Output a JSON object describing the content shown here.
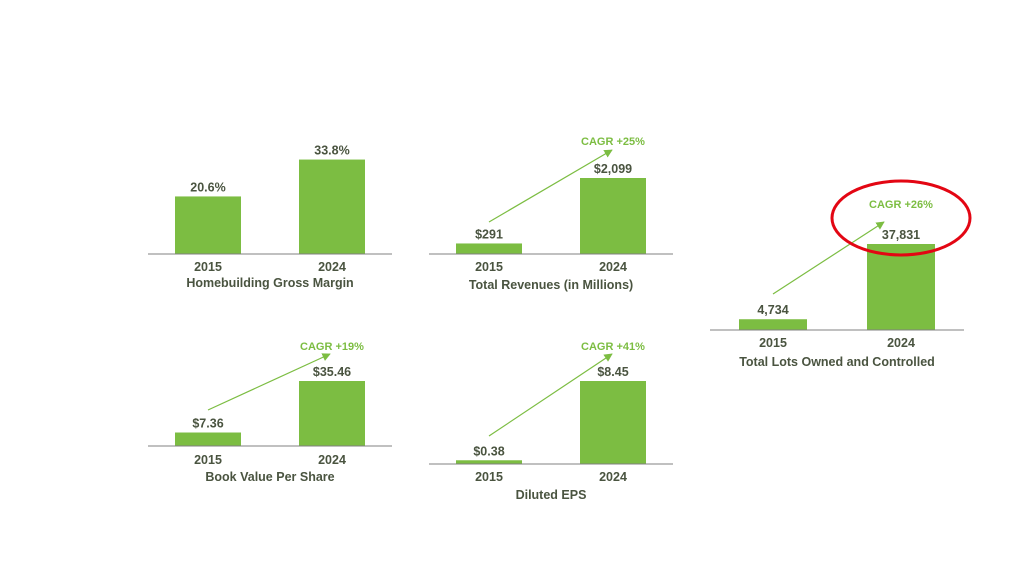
{
  "colors": {
    "bar": "#7cbd42",
    "text": "#4a5440",
    "axis": "#808080",
    "highlight": "#e30613"
  },
  "chart_data": [
    {
      "type": "bar",
      "title": "Homebuilding Gross Margin",
      "categories": [
        "2015",
        "2024"
      ],
      "values": [
        20.6,
        33.8
      ],
      "value_labels": [
        "20.6%",
        "33.8%"
      ],
      "ylim": [
        0,
        34
      ],
      "cagr": ""
    },
    {
      "type": "bar",
      "title": "Total Revenues (in Millions)",
      "categories": [
        "2015",
        "2024"
      ],
      "values": [
        291,
        2099
      ],
      "value_labels": [
        "$291",
        "$2,099"
      ],
      "ylim": [
        0,
        2099
      ],
      "cagr": "CAGR +25%"
    },
    {
      "type": "bar",
      "title": "Total Lots Owned and Controlled",
      "categories": [
        "2015",
        "2024"
      ],
      "values": [
        4734,
        37831
      ],
      "value_labels": [
        "4,734",
        "37,831"
      ],
      "ylim": [
        0,
        37831
      ],
      "cagr": "CAGR +26%",
      "highlighted": true
    },
    {
      "type": "bar",
      "title": "Book Value Per Share",
      "categories": [
        "2015",
        "2024"
      ],
      "values": [
        7.36,
        35.46
      ],
      "value_labels": [
        "$7.36",
        "$35.46"
      ],
      "ylim": [
        0,
        35.46
      ],
      "cagr": "CAGR +19%"
    },
    {
      "type": "bar",
      "title": "Diluted EPS",
      "categories": [
        "2015",
        "2024"
      ],
      "values": [
        0.38,
        8.45
      ],
      "value_labels": [
        "$0.38",
        "$8.45"
      ],
      "ylim": [
        0,
        8.45
      ],
      "cagr": "CAGR +41%"
    }
  ]
}
